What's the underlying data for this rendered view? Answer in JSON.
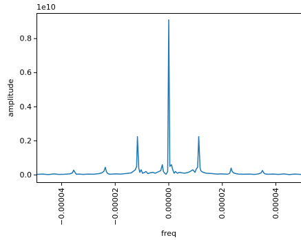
{
  "chart_data": {
    "type": "line",
    "title": "",
    "xlabel": "freq",
    "ylabel": "amplitude",
    "y_offset_label": "1e10",
    "xlim": [
      -4.94e-05,
      4.94e-05
    ],
    "ylim": [
      -0.047,
      0.95
    ],
    "grid": false,
    "x_ticks": [
      {
        "value": -4e-05,
        "label": "−0.00004"
      },
      {
        "value": -2e-05,
        "label": "−0.00002"
      },
      {
        "value": 0.0,
        "label": "0.00000"
      },
      {
        "value": 2e-05,
        "label": "0.00002"
      },
      {
        "value": 4e-05,
        "label": "0.00004"
      }
    ],
    "y_ticks": [
      {
        "value": 0.0,
        "label": "0.0"
      },
      {
        "value": 0.2,
        "label": "0.2"
      },
      {
        "value": 0.4,
        "label": "0.4"
      },
      {
        "value": 0.6,
        "label": "0.6"
      },
      {
        "value": 0.8,
        "label": "0.8"
      }
    ],
    "series": [
      {
        "color": "#1f77b4",
        "x": [
          -4.94e-05,
          -4.7e-05,
          -4.5e-05,
          -4.3e-05,
          -4.1e-05,
          -3.9e-05,
          -3.7e-05,
          -3.6e-05,
          -3.55e-05,
          -3.5e-05,
          -3.45e-05,
          -3.35e-05,
          -3.2e-05,
          -3e-05,
          -2.8e-05,
          -2.6e-05,
          -2.5e-05,
          -2.42e-05,
          -2.37e-05,
          -2.33e-05,
          -2.28e-05,
          -2.2e-05,
          -2e-05,
          -1.8e-05,
          -1.6e-05,
          -1.4e-05,
          -1.35e-05,
          -1.25e-05,
          -1.2e-05,
          -1.17e-05,
          -1.12e-05,
          -1.08e-05,
          -1.03e-05,
          -9.8e-06,
          -9e-06,
          -8.5e-06,
          -7.8e-06,
          -7e-06,
          -6e-06,
          -5e-06,
          -4e-06,
          -3e-06,
          -2.4e-06,
          -2e-06,
          -1.5e-06,
          -1e-06,
          -4e-07,
          0.0,
          4e-07,
          1e-06,
          1.5e-06,
          2e-06,
          2.5e-06,
          3.2e-06,
          4e-06,
          5e-06,
          6e-06,
          7e-06,
          8e-06,
          9e-06,
          9.8e-06,
          1.03e-05,
          1.08e-05,
          1.12e-05,
          1.17e-05,
          1.2e-05,
          1.25e-05,
          1.35e-05,
          1.4e-05,
          1.6e-05,
          1.8e-05,
          2e-05,
          2.2e-05,
          2.28e-05,
          2.33e-05,
          2.37e-05,
          2.42e-05,
          2.5e-05,
          2.6e-05,
          2.8e-05,
          3e-05,
          3.2e-05,
          3.35e-05,
          3.45e-05,
          3.5e-05,
          3.55e-05,
          3.6e-05,
          3.7e-05,
          3.9e-05,
          4.1e-05,
          4.3e-05,
          4.5e-05,
          4.7e-05,
          4.94e-05
        ],
        "y": [
          0.003,
          0.005,
          0.002,
          0.006,
          0.003,
          0.004,
          0.006,
          0.012,
          0.028,
          0.014,
          0.004,
          0.005,
          0.003,
          0.005,
          0.004,
          0.008,
          0.012,
          0.022,
          0.045,
          0.02,
          0.008,
          0.004,
          0.006,
          0.005,
          0.008,
          0.012,
          0.018,
          0.03,
          0.05,
          0.225,
          0.04,
          0.015,
          0.03,
          0.01,
          0.015,
          0.02,
          0.008,
          0.012,
          0.015,
          0.01,
          0.018,
          0.025,
          0.06,
          0.02,
          0.01,
          0.004,
          0.02,
          0.91,
          0.05,
          0.06,
          0.03,
          0.01,
          0.02,
          0.01,
          0.015,
          0.012,
          0.01,
          0.014,
          0.02,
          0.03,
          0.015,
          0.035,
          0.045,
          0.225,
          0.04,
          0.025,
          0.018,
          0.012,
          0.01,
          0.008,
          0.005,
          0.006,
          0.004,
          0.01,
          0.04,
          0.02,
          0.012,
          0.008,
          0.005,
          0.004,
          0.005,
          0.003,
          0.006,
          0.012,
          0.026,
          0.012,
          0.006,
          0.004,
          0.005,
          0.003,
          0.006,
          0.002,
          0.005,
          0.003
        ]
      }
    ]
  }
}
